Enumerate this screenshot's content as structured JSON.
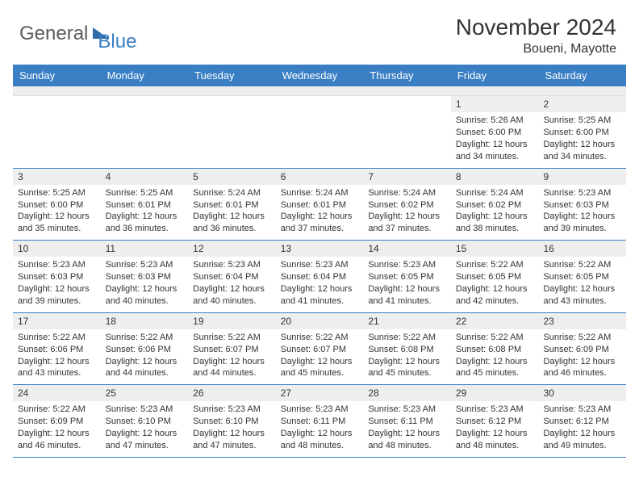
{
  "logo": {
    "text1": "General",
    "text2": "Blue"
  },
  "header": {
    "month": "November 2024",
    "location": "Boueni, Mayotte"
  },
  "dayHeaders": [
    "Sunday",
    "Monday",
    "Tuesday",
    "Wednesday",
    "Thursday",
    "Friday",
    "Saturday"
  ],
  "style": {
    "accent": "#3a7fc4",
    "header_bg": "#3a7fc4",
    "daynum_bg": "#eeeeee",
    "week_border": "#3a7fc4",
    "body_font_size": 11,
    "head_font_size": 13,
    "title_font_size": 28
  },
  "weeks": [
    [
      null,
      null,
      null,
      null,
      null,
      {
        "n": "1",
        "sr": "Sunrise: 5:26 AM",
        "ss": "Sunset: 6:00 PM",
        "d1": "Daylight: 12 hours",
        "d2": "and 34 minutes."
      },
      {
        "n": "2",
        "sr": "Sunrise: 5:25 AM",
        "ss": "Sunset: 6:00 PM",
        "d1": "Daylight: 12 hours",
        "d2": "and 34 minutes."
      }
    ],
    [
      {
        "n": "3",
        "sr": "Sunrise: 5:25 AM",
        "ss": "Sunset: 6:00 PM",
        "d1": "Daylight: 12 hours",
        "d2": "and 35 minutes."
      },
      {
        "n": "4",
        "sr": "Sunrise: 5:25 AM",
        "ss": "Sunset: 6:01 PM",
        "d1": "Daylight: 12 hours",
        "d2": "and 36 minutes."
      },
      {
        "n": "5",
        "sr": "Sunrise: 5:24 AM",
        "ss": "Sunset: 6:01 PM",
        "d1": "Daylight: 12 hours",
        "d2": "and 36 minutes."
      },
      {
        "n": "6",
        "sr": "Sunrise: 5:24 AM",
        "ss": "Sunset: 6:01 PM",
        "d1": "Daylight: 12 hours",
        "d2": "and 37 minutes."
      },
      {
        "n": "7",
        "sr": "Sunrise: 5:24 AM",
        "ss": "Sunset: 6:02 PM",
        "d1": "Daylight: 12 hours",
        "d2": "and 37 minutes."
      },
      {
        "n": "8",
        "sr": "Sunrise: 5:24 AM",
        "ss": "Sunset: 6:02 PM",
        "d1": "Daylight: 12 hours",
        "d2": "and 38 minutes."
      },
      {
        "n": "9",
        "sr": "Sunrise: 5:23 AM",
        "ss": "Sunset: 6:03 PM",
        "d1": "Daylight: 12 hours",
        "d2": "and 39 minutes."
      }
    ],
    [
      {
        "n": "10",
        "sr": "Sunrise: 5:23 AM",
        "ss": "Sunset: 6:03 PM",
        "d1": "Daylight: 12 hours",
        "d2": "and 39 minutes."
      },
      {
        "n": "11",
        "sr": "Sunrise: 5:23 AM",
        "ss": "Sunset: 6:03 PM",
        "d1": "Daylight: 12 hours",
        "d2": "and 40 minutes."
      },
      {
        "n": "12",
        "sr": "Sunrise: 5:23 AM",
        "ss": "Sunset: 6:04 PM",
        "d1": "Daylight: 12 hours",
        "d2": "and 40 minutes."
      },
      {
        "n": "13",
        "sr": "Sunrise: 5:23 AM",
        "ss": "Sunset: 6:04 PM",
        "d1": "Daylight: 12 hours",
        "d2": "and 41 minutes."
      },
      {
        "n": "14",
        "sr": "Sunrise: 5:23 AM",
        "ss": "Sunset: 6:05 PM",
        "d1": "Daylight: 12 hours",
        "d2": "and 41 minutes."
      },
      {
        "n": "15",
        "sr": "Sunrise: 5:22 AM",
        "ss": "Sunset: 6:05 PM",
        "d1": "Daylight: 12 hours",
        "d2": "and 42 minutes."
      },
      {
        "n": "16",
        "sr": "Sunrise: 5:22 AM",
        "ss": "Sunset: 6:05 PM",
        "d1": "Daylight: 12 hours",
        "d2": "and 43 minutes."
      }
    ],
    [
      {
        "n": "17",
        "sr": "Sunrise: 5:22 AM",
        "ss": "Sunset: 6:06 PM",
        "d1": "Daylight: 12 hours",
        "d2": "and 43 minutes."
      },
      {
        "n": "18",
        "sr": "Sunrise: 5:22 AM",
        "ss": "Sunset: 6:06 PM",
        "d1": "Daylight: 12 hours",
        "d2": "and 44 minutes."
      },
      {
        "n": "19",
        "sr": "Sunrise: 5:22 AM",
        "ss": "Sunset: 6:07 PM",
        "d1": "Daylight: 12 hours",
        "d2": "and 44 minutes."
      },
      {
        "n": "20",
        "sr": "Sunrise: 5:22 AM",
        "ss": "Sunset: 6:07 PM",
        "d1": "Daylight: 12 hours",
        "d2": "and 45 minutes."
      },
      {
        "n": "21",
        "sr": "Sunrise: 5:22 AM",
        "ss": "Sunset: 6:08 PM",
        "d1": "Daylight: 12 hours",
        "d2": "and 45 minutes."
      },
      {
        "n": "22",
        "sr": "Sunrise: 5:22 AM",
        "ss": "Sunset: 6:08 PM",
        "d1": "Daylight: 12 hours",
        "d2": "and 45 minutes."
      },
      {
        "n": "23",
        "sr": "Sunrise: 5:22 AM",
        "ss": "Sunset: 6:09 PM",
        "d1": "Daylight: 12 hours",
        "d2": "and 46 minutes."
      }
    ],
    [
      {
        "n": "24",
        "sr": "Sunrise: 5:22 AM",
        "ss": "Sunset: 6:09 PM",
        "d1": "Daylight: 12 hours",
        "d2": "and 46 minutes."
      },
      {
        "n": "25",
        "sr": "Sunrise: 5:23 AM",
        "ss": "Sunset: 6:10 PM",
        "d1": "Daylight: 12 hours",
        "d2": "and 47 minutes."
      },
      {
        "n": "26",
        "sr": "Sunrise: 5:23 AM",
        "ss": "Sunset: 6:10 PM",
        "d1": "Daylight: 12 hours",
        "d2": "and 47 minutes."
      },
      {
        "n": "27",
        "sr": "Sunrise: 5:23 AM",
        "ss": "Sunset: 6:11 PM",
        "d1": "Daylight: 12 hours",
        "d2": "and 48 minutes."
      },
      {
        "n": "28",
        "sr": "Sunrise: 5:23 AM",
        "ss": "Sunset: 6:11 PM",
        "d1": "Daylight: 12 hours",
        "d2": "and 48 minutes."
      },
      {
        "n": "29",
        "sr": "Sunrise: 5:23 AM",
        "ss": "Sunset: 6:12 PM",
        "d1": "Daylight: 12 hours",
        "d2": "and 48 minutes."
      },
      {
        "n": "30",
        "sr": "Sunrise: 5:23 AM",
        "ss": "Sunset: 6:12 PM",
        "d1": "Daylight: 12 hours",
        "d2": "and 49 minutes."
      }
    ]
  ]
}
